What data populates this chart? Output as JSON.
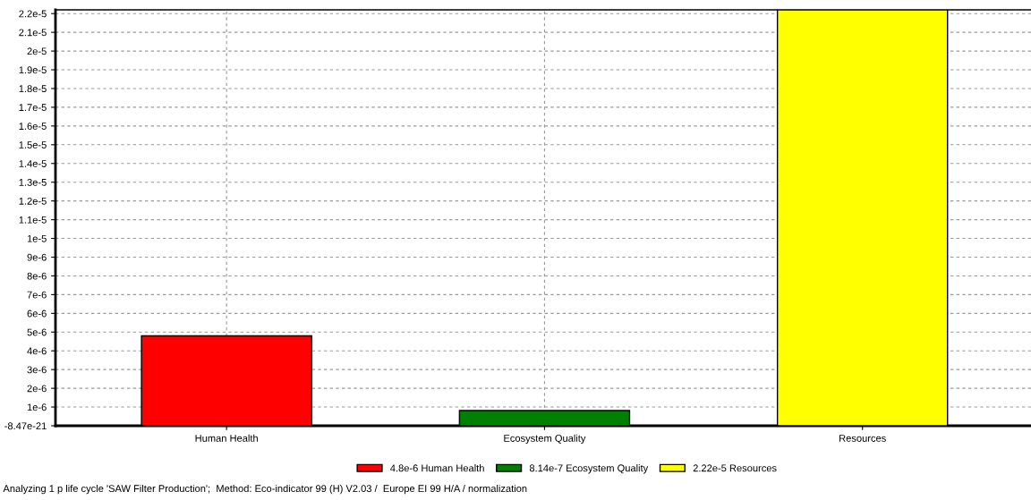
{
  "chart_data": {
    "type": "bar",
    "categories": [
      "Human Health",
      "Ecosystem Quality",
      "Resources"
    ],
    "stacked": true,
    "series": [
      {
        "name": "4.8e-6 Human Health",
        "color": "#ff0000",
        "values": [
          4.8e-06,
          null,
          null
        ]
      },
      {
        "name": "8.14e-7 Ecosystem Quality",
        "color": "#008000",
        "values": [
          null,
          8.14e-07,
          null
        ]
      },
      {
        "name": "2.22e-5 Resources",
        "color": "#ffff00",
        "values": [
          null,
          null,
          2.22e-05
        ]
      }
    ],
    "ylim": [
      -8.47e-21,
      2.22e-05
    ],
    "yticks": [
      {
        "value": -8.47e-21,
        "label": "-8.47e-21"
      },
      {
        "value": 1e-06,
        "label": "1e-6"
      },
      {
        "value": 2e-06,
        "label": "2e-6"
      },
      {
        "value": 3e-06,
        "label": "3e-6"
      },
      {
        "value": 4e-06,
        "label": "4e-6"
      },
      {
        "value": 5e-06,
        "label": "5e-6"
      },
      {
        "value": 6e-06,
        "label": "6e-6"
      },
      {
        "value": 7e-06,
        "label": "7e-6"
      },
      {
        "value": 8e-06,
        "label": "8e-6"
      },
      {
        "value": 9e-06,
        "label": "9e-6"
      },
      {
        "value": 1e-05,
        "label": "1e-5"
      },
      {
        "value": 1.1e-05,
        "label": "1.1e-5"
      },
      {
        "value": 1.2e-05,
        "label": "1.2e-5"
      },
      {
        "value": 1.3e-05,
        "label": "1.3e-5"
      },
      {
        "value": 1.4e-05,
        "label": "1.4e-5"
      },
      {
        "value": 1.5e-05,
        "label": "1.5e-5"
      },
      {
        "value": 1.6e-05,
        "label": "1.6e-5"
      },
      {
        "value": 1.7e-05,
        "label": "1.7e-5"
      },
      {
        "value": 1.8e-05,
        "label": "1.8e-5"
      },
      {
        "value": 1.9e-05,
        "label": "1.9e-5"
      },
      {
        "value": 2e-05,
        "label": "2e-5"
      },
      {
        "value": 2.1e-05,
        "label": "2.1e-5"
      },
      {
        "value": 2.2e-05,
        "label": "2.2e-5"
      }
    ],
    "grid": true,
    "legend": "bottom",
    "annotations": [
      "Analyzing 1 p life cycle 'SAW Filter Production';  Method: Eco-indicator 99 (H) V2.03 /  Europe EI 99 H/A / normalization"
    ]
  }
}
